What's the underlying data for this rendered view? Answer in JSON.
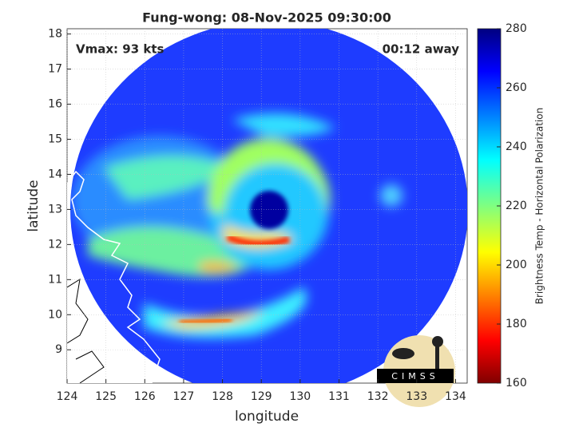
{
  "map": {
    "title": "Fung-wong: 08-Nov-2025 09:30:00",
    "annotations": {
      "left": "Vmax: 93 kts",
      "right": "00:12 away"
    },
    "xlabel": "longitude",
    "ylabel": "latitude",
    "xlim": [
      124,
      134.3
    ],
    "ylim": [
      8.05,
      18.15
    ],
    "xticks": [
      124,
      125,
      126,
      127,
      128,
      129,
      130,
      131,
      132,
      133,
      134
    ],
    "yticks": [
      9,
      10,
      11,
      12,
      13,
      14,
      15,
      16,
      17,
      18
    ],
    "grid": true,
    "colorbar": {
      "label": "Brightness Temp - Horizontal Polarization",
      "lim": [
        160,
        280
      ],
      "ticks": [
        160,
        180,
        200,
        220,
        240,
        260,
        280
      ],
      "colormap": "jet"
    },
    "logo": "CIMSS"
  }
}
